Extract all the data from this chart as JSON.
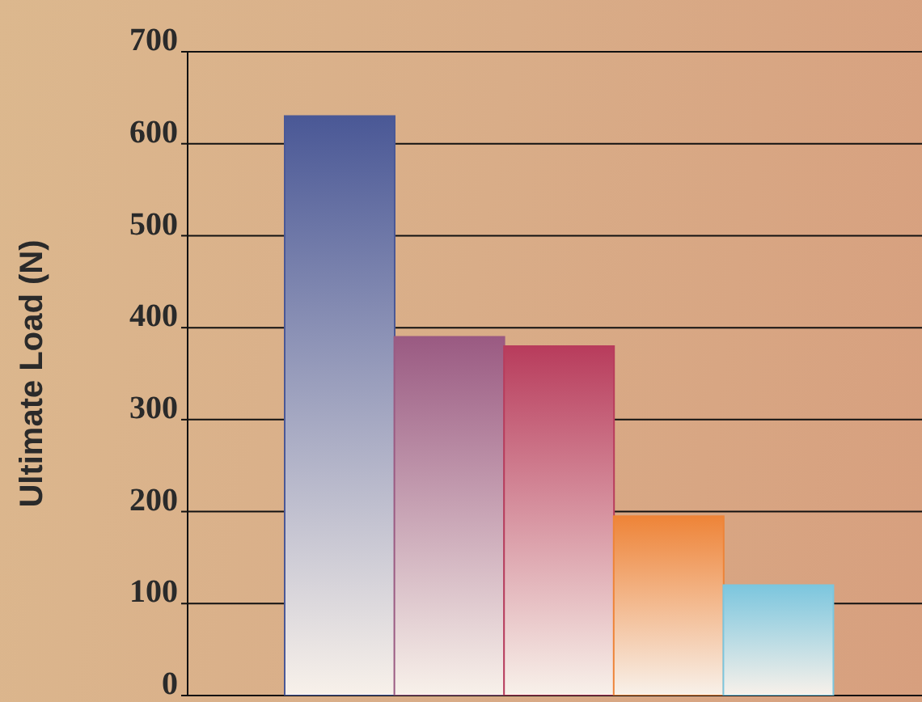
{
  "chart_data": {
    "type": "bar",
    "ylabel": "Ultimate Load (N)",
    "categories": [
      null,
      null,
      null,
      null,
      null
    ],
    "values": [
      630,
      390,
      380,
      195,
      120
    ],
    "colors": [
      "#4a5896",
      "#9a5a82",
      "#b83c5c",
      "#ee8438",
      "#7cc6de"
    ],
    "ylim": [
      0,
      700
    ],
    "yticks": [
      0,
      100,
      200,
      300,
      400,
      500,
      600,
      700
    ],
    "grid": "y",
    "legend": false
  }
}
